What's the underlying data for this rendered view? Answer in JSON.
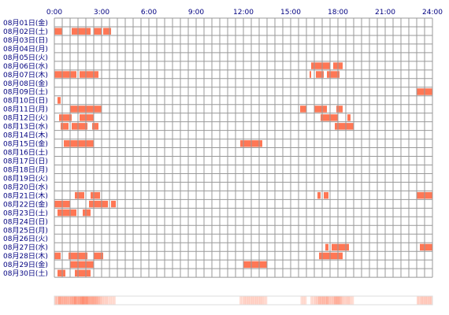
{
  "chart_data": {
    "type": "heatmap",
    "title": "",
    "x_axis": {
      "range": [
        0,
        24
      ],
      "tick_labels": [
        "0:00",
        "3:00",
        "6:00",
        "9:00",
        "12:00",
        "15:00",
        "18:00",
        "21:00",
        "24:00"
      ]
    },
    "grid": true,
    "colors": {
      "active": "#ff7755",
      "grid": "#999999",
      "label": "#000080"
    },
    "rows": [
      {
        "label": "08月01日(金)",
        "activity": []
      },
      {
        "label": "08月02日(土)",
        "activity": [
          [
            0.0,
            0.5
          ],
          [
            1.1,
            2.3
          ],
          [
            2.5,
            3.0
          ],
          [
            3.1,
            3.6
          ]
        ]
      },
      {
        "label": "08月03日(日)",
        "activity": []
      },
      {
        "label": "08月04日(月)",
        "activity": []
      },
      {
        "label": "08月05日(火)",
        "activity": []
      },
      {
        "label": "08月06日(水)",
        "activity": [
          [
            16.3,
            17.5
          ],
          [
            17.7,
            18.3
          ]
        ]
      },
      {
        "label": "08月07日(木)",
        "activity": [
          [
            0.0,
            1.4
          ],
          [
            1.6,
            2.8
          ],
          [
            16.2,
            16.3
          ],
          [
            16.6,
            17.1
          ],
          [
            17.3,
            18.1
          ]
        ]
      },
      {
        "label": "08月08日(金)",
        "activity": []
      },
      {
        "label": "08月09日(土)",
        "activity": [
          [
            23.0,
            24.0
          ]
        ]
      },
      {
        "label": "08月10日(日)",
        "activity": [
          [
            0.2,
            0.4
          ]
        ]
      },
      {
        "label": "08月11日(月)",
        "activity": [
          [
            1.0,
            3.0
          ],
          [
            15.6,
            16.0
          ],
          [
            16.5,
            17.3
          ],
          [
            17.9,
            18.3
          ]
        ]
      },
      {
        "label": "08月12日(火)",
        "activity": [
          [
            0.3,
            1.1
          ],
          [
            1.6,
            2.5
          ],
          [
            16.9,
            18.0
          ],
          [
            18.6,
            18.8
          ]
        ]
      },
      {
        "label": "08月13日(水)",
        "activity": [
          [
            0.4,
            0.9
          ],
          [
            1.1,
            2.1
          ],
          [
            2.4,
            2.8
          ],
          [
            17.8,
            19.0
          ]
        ]
      },
      {
        "label": "08月14日(木)",
        "activity": []
      },
      {
        "label": "08月15日(金)",
        "activity": [
          [
            0.6,
            2.5
          ],
          [
            11.8,
            13.2
          ]
        ]
      },
      {
        "label": "08月16日(土)",
        "activity": []
      },
      {
        "label": "08月17日(日)",
        "activity": []
      },
      {
        "label": "08月18日(月)",
        "activity": []
      },
      {
        "label": "08月19日(火)",
        "activity": []
      },
      {
        "label": "08月20日(水)",
        "activity": []
      },
      {
        "label": "08月21日(木)",
        "activity": [
          [
            1.3,
            1.9
          ],
          [
            2.3,
            2.9
          ],
          [
            16.7,
            16.9
          ],
          [
            17.1,
            17.4
          ],
          [
            23.0,
            24.0
          ]
        ]
      },
      {
        "label": "08月22日(金)",
        "activity": [
          [
            0.0,
            1.0
          ],
          [
            2.2,
            3.4
          ],
          [
            3.6,
            3.9
          ]
        ]
      },
      {
        "label": "08月23日(土)",
        "activity": [
          [
            0.2,
            1.4
          ],
          [
            1.8,
            2.3
          ]
        ]
      },
      {
        "label": "08月24日(日)",
        "activity": []
      },
      {
        "label": "08月25日(月)",
        "activity": []
      },
      {
        "label": "08月26日(火)",
        "activity": []
      },
      {
        "label": "08月27日(水)",
        "activity": [
          [
            17.2,
            17.4
          ],
          [
            17.6,
            18.7
          ],
          [
            23.2,
            24.0
          ]
        ]
      },
      {
        "label": "08月28日(木)",
        "activity": [
          [
            0.0,
            0.4
          ],
          [
            0.9,
            2.1
          ],
          [
            2.5,
            3.1
          ],
          [
            16.8,
            18.3
          ]
        ]
      },
      {
        "label": "08月29日(金)",
        "activity": [
          [
            1.0,
            2.5
          ],
          [
            12.0,
            13.5
          ]
        ]
      },
      {
        "label": "08月30日(土)",
        "activity": [
          [
            0.2,
            0.7
          ],
          [
            1.3,
            2.3
          ]
        ]
      }
    ]
  }
}
